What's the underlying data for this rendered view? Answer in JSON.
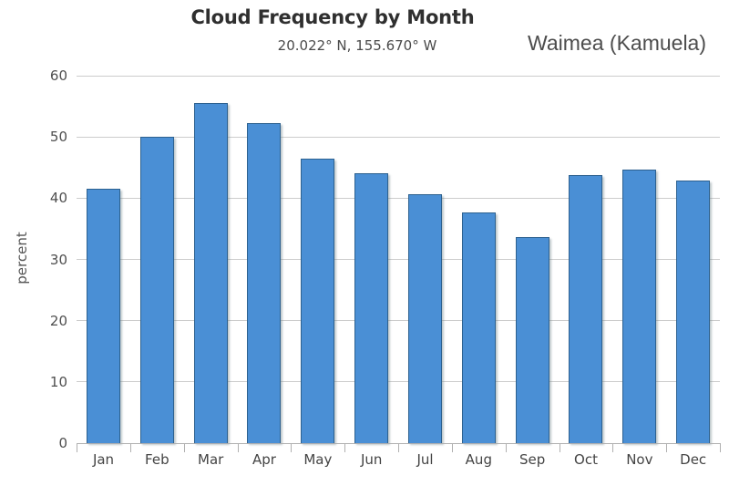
{
  "header": {
    "title": "Cloud Frequency by Month",
    "coordinates": "20.022° N, 155.670° W",
    "station": "Waimea (Kamuela)"
  },
  "chart_data": {
    "type": "bar",
    "title": "Cloud Frequency by Month",
    "subtitle": "20.022° N, 155.670° W",
    "station": "Waimea (Kamuela)",
    "categories": [
      "Jan",
      "Feb",
      "Mar",
      "Apr",
      "May",
      "Jun",
      "Jul",
      "Aug",
      "Sep",
      "Oct",
      "Nov",
      "Dec"
    ],
    "values": [
      41.5,
      50.0,
      55.5,
      52.3,
      46.5,
      44.0,
      40.6,
      37.6,
      33.7,
      43.7,
      44.7,
      42.9
    ],
    "xlabel": "",
    "ylabel": "percent",
    "ylim": [
      0,
      60
    ],
    "yticks": [
      0,
      10,
      20,
      30,
      40,
      50,
      60
    ],
    "grid": true,
    "legend": "none",
    "colors": {
      "bar_fill": "#4a8fd5",
      "bar_border": "#2d618f",
      "gridline": "#cccccc",
      "axis_line": "#b0b0b0",
      "label_text": "#444444"
    }
  }
}
